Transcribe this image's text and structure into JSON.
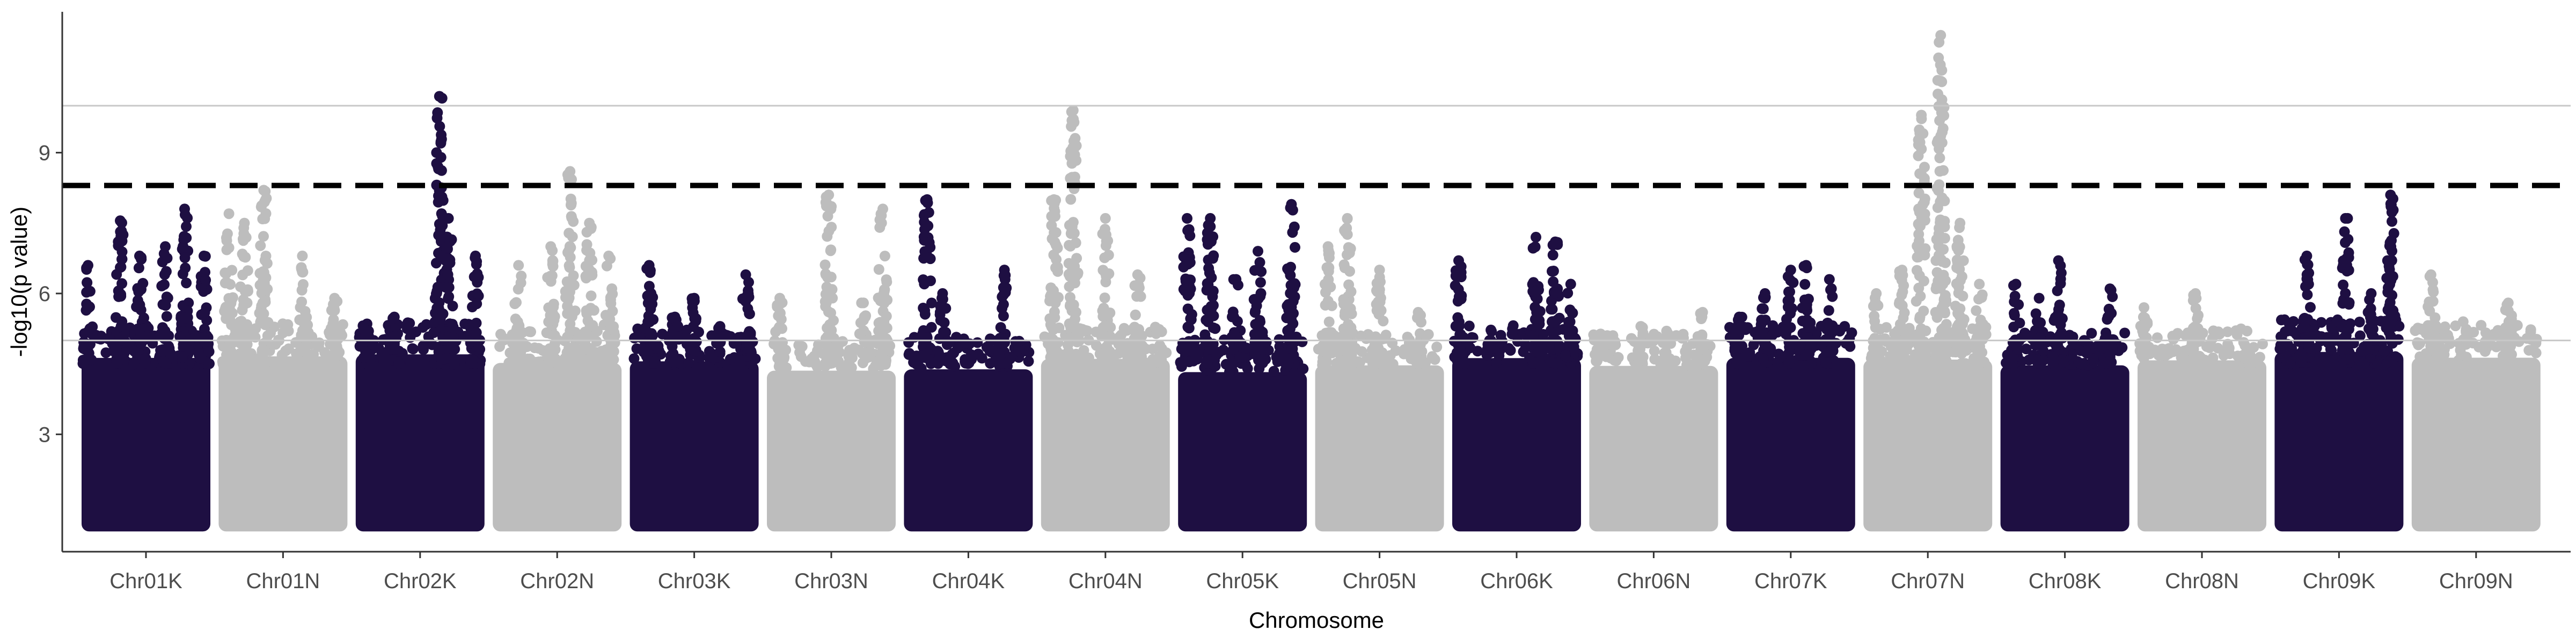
{
  "chart_data": {
    "type": "scatter",
    "subtype": "manhattan",
    "title": "",
    "xlabel": "Chromosome",
    "ylabel": "-log10(p value)",
    "ylim": [
      0.5,
      12.0
    ],
    "yticks": [
      3,
      6,
      9
    ],
    "grid": "horizontal reference lines only",
    "legend": "none",
    "reference_lines": [
      {
        "kind": "solid",
        "y": 5.0,
        "color": "#c8c8c8"
      },
      {
        "kind": "solid",
        "y": 10.0,
        "color": "#c8c8c8"
      },
      {
        "kind": "dashed",
        "y": 8.3,
        "color": "#000000"
      }
    ],
    "categories": [
      "Chr01K",
      "Chr01N",
      "Chr02K",
      "Chr02N",
      "Chr03K",
      "Chr03N",
      "Chr04K",
      "Chr04N",
      "Chr05K",
      "Chr05N",
      "Chr06K",
      "Chr06N",
      "Chr07K",
      "Chr07N",
      "Chr08K",
      "Chr08N",
      "Chr09K",
      "Chr09N"
    ],
    "point_colors": [
      "#1e0f42",
      "#bdbdbd"
    ],
    "baseline_min": 1.0,
    "chromosomes": [
      {
        "name": "Chr01K",
        "max_y": 7.8,
        "peaks": [
          {
            "pos": 0.05,
            "y": 6.6
          },
          {
            "pos": 0.3,
            "y": 7.55
          },
          {
            "pos": 0.45,
            "y": 6.8
          },
          {
            "pos": 0.65,
            "y": 7.0
          },
          {
            "pos": 0.8,
            "y": 7.8
          },
          {
            "pos": 0.95,
            "y": 6.8
          }
        ]
      },
      {
        "name": "Chr01N",
        "max_y": 8.2,
        "peaks": [
          {
            "pos": 0.08,
            "y": 7.7
          },
          {
            "pos": 0.2,
            "y": 7.5
          },
          {
            "pos": 0.35,
            "y": 8.2
          },
          {
            "pos": 0.65,
            "y": 6.8
          },
          {
            "pos": 0.9,
            "y": 5.9
          }
        ]
      },
      {
        "name": "Chr02K",
        "max_y": 10.2,
        "peaks": [
          {
            "pos": 0.1,
            "y": 5.2
          },
          {
            "pos": 0.3,
            "y": 5.5
          },
          {
            "pos": 0.65,
            "y": 10.2
          },
          {
            "pos": 0.72,
            "y": 7.6
          },
          {
            "pos": 0.93,
            "y": 6.8
          }
        ]
      },
      {
        "name": "Chr02N",
        "max_y": 8.6,
        "peaks": [
          {
            "pos": 0.2,
            "y": 6.6
          },
          {
            "pos": 0.45,
            "y": 7.0
          },
          {
            "pos": 0.6,
            "y": 8.6
          },
          {
            "pos": 0.75,
            "y": 7.5
          },
          {
            "pos": 0.9,
            "y": 6.8
          }
        ]
      },
      {
        "name": "Chr03K",
        "max_y": 6.6,
        "peaks": [
          {
            "pos": 0.15,
            "y": 6.6
          },
          {
            "pos": 0.35,
            "y": 5.5
          },
          {
            "pos": 0.5,
            "y": 5.9
          },
          {
            "pos": 0.7,
            "y": 5.3
          },
          {
            "pos": 0.9,
            "y": 6.4
          }
        ]
      },
      {
        "name": "Chr03N",
        "max_y": 8.1,
        "peaks": [
          {
            "pos": 0.1,
            "y": 5.9
          },
          {
            "pos": 0.48,
            "y": 8.1
          },
          {
            "pos": 0.75,
            "y": 5.8
          },
          {
            "pos": 0.9,
            "y": 7.8
          }
        ]
      },
      {
        "name": "Chr04K",
        "max_y": 8.0,
        "peaks": [
          {
            "pos": 0.18,
            "y": 8.0
          },
          {
            "pos": 0.3,
            "y": 6.0
          },
          {
            "pos": 0.5,
            "y": 4.6
          },
          {
            "pos": 0.78,
            "y": 6.5
          }
        ]
      },
      {
        "name": "Chr04N",
        "max_y": 9.9,
        "peaks": [
          {
            "pos": 0.1,
            "y": 8.0
          },
          {
            "pos": 0.25,
            "y": 9.9
          },
          {
            "pos": 0.5,
            "y": 7.6
          },
          {
            "pos": 0.75,
            "y": 6.4
          },
          {
            "pos": 0.9,
            "y": 5.2
          }
        ]
      },
      {
        "name": "Chr05K",
        "max_y": 7.9,
        "peaks": [
          {
            "pos": 0.07,
            "y": 7.6
          },
          {
            "pos": 0.25,
            "y": 7.6
          },
          {
            "pos": 0.45,
            "y": 6.3
          },
          {
            "pos": 0.62,
            "y": 6.9
          },
          {
            "pos": 0.88,
            "y": 7.9
          }
        ]
      },
      {
        "name": "Chr05N",
        "max_y": 7.6,
        "peaks": [
          {
            "pos": 0.1,
            "y": 7.0
          },
          {
            "pos": 0.25,
            "y": 7.6
          },
          {
            "pos": 0.5,
            "y": 6.5
          },
          {
            "pos": 0.8,
            "y": 5.6
          }
        ]
      },
      {
        "name": "Chr06K",
        "max_y": 7.2,
        "peaks": [
          {
            "pos": 0.05,
            "y": 6.7
          },
          {
            "pos": 0.3,
            "y": 5.0
          },
          {
            "pos": 0.65,
            "y": 7.2
          },
          {
            "pos": 0.8,
            "y": 7.1
          },
          {
            "pos": 0.92,
            "y": 6.2
          }
        ]
      },
      {
        "name": "Chr06N",
        "max_y": 5.6,
        "peaks": [
          {
            "pos": 0.1,
            "y": 5.0
          },
          {
            "pos": 0.4,
            "y": 5.3
          },
          {
            "pos": 0.6,
            "y": 5.2
          },
          {
            "pos": 0.88,
            "y": 5.6
          }
        ]
      },
      {
        "name": "Chr07K",
        "max_y": 6.6,
        "peaks": [
          {
            "pos": 0.1,
            "y": 5.5
          },
          {
            "pos": 0.3,
            "y": 6.0
          },
          {
            "pos": 0.5,
            "y": 6.5
          },
          {
            "pos": 0.62,
            "y": 6.6
          },
          {
            "pos": 0.8,
            "y": 6.3
          }
        ]
      },
      {
        "name": "Chr07N",
        "max_y": 11.5,
        "peaks": [
          {
            "pos": 0.1,
            "y": 6.0
          },
          {
            "pos": 0.3,
            "y": 6.5
          },
          {
            "pos": 0.45,
            "y": 9.8
          },
          {
            "pos": 0.6,
            "y": 11.5
          },
          {
            "pos": 0.75,
            "y": 7.5
          },
          {
            "pos": 0.9,
            "y": 6.2
          }
        ]
      },
      {
        "name": "Chr08K",
        "max_y": 6.7,
        "peaks": [
          {
            "pos": 0.12,
            "y": 6.2
          },
          {
            "pos": 0.3,
            "y": 5.9
          },
          {
            "pos": 0.45,
            "y": 6.7
          },
          {
            "pos": 0.65,
            "y": 5.0
          },
          {
            "pos": 0.85,
            "y": 6.1
          }
        ]
      },
      {
        "name": "Chr08N",
        "max_y": 6.0,
        "peaks": [
          {
            "pos": 0.05,
            "y": 5.7
          },
          {
            "pos": 0.45,
            "y": 6.0
          },
          {
            "pos": 0.85,
            "y": 5.2
          }
        ]
      },
      {
        "name": "Chr09K",
        "max_y": 8.1,
        "peaks": [
          {
            "pos": 0.1,
            "y": 5.2
          },
          {
            "pos": 0.25,
            "y": 6.8
          },
          {
            "pos": 0.55,
            "y": 7.6
          },
          {
            "pos": 0.75,
            "y": 6.0
          },
          {
            "pos": 0.9,
            "y": 8.1
          }
        ]
      },
      {
        "name": "Chr09N",
        "max_y": 6.4,
        "peaks": [
          {
            "pos": 0.15,
            "y": 6.4
          },
          {
            "pos": 0.4,
            "y": 5.4
          },
          {
            "pos": 0.75,
            "y": 5.8
          }
        ]
      }
    ]
  }
}
